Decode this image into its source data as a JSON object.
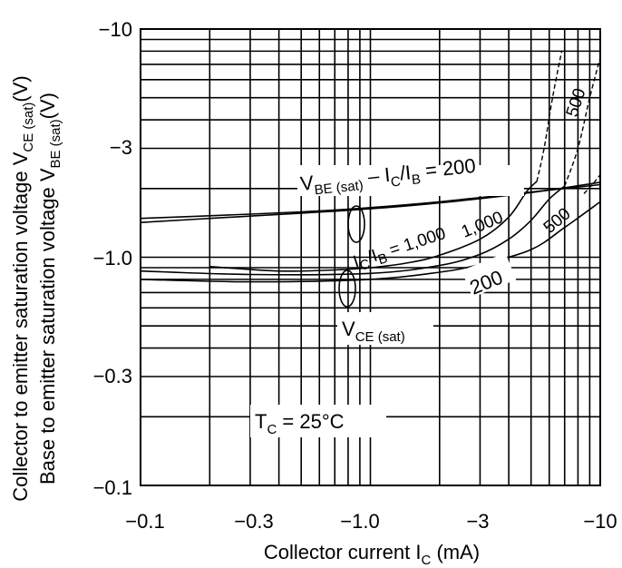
{
  "chart_data": {
    "type": "line",
    "x_scale": "log",
    "y_scale": "log",
    "xlim": [
      -0.1,
      -10
    ],
    "ylim": [
      -0.1,
      -10
    ],
    "grid": true,
    "x_ticks": [
      {
        "value": -0.1,
        "label": "−0.1"
      },
      {
        "value": -0.3,
        "label": "−0.3"
      },
      {
        "value": -1.0,
        "label": "−1.0"
      },
      {
        "value": -3,
        "label": "−3"
      },
      {
        "value": -10,
        "label": "−10"
      }
    ],
    "y_ticks": [
      {
        "value": -0.1,
        "label": "−0.1"
      },
      {
        "value": -0.3,
        "label": "−0.3"
      },
      {
        "value": -1.0,
        "label": "−1.0"
      },
      {
        "value": -3,
        "label": "−3"
      },
      {
        "value": -10,
        "label": "−10"
      }
    ],
    "xlabel": {
      "main": "Collector current  I",
      "sub": "C",
      "unit": "  (mA)"
    },
    "ylabel_line1": {
      "main": "Collector to emitter saturation voltage  V",
      "sub": "CE (sat)",
      "unit": "(V)"
    },
    "ylabel_line2": {
      "main": "Base to emitter saturation voltage  V",
      "sub": "BE (sat)",
      "unit": "(V)"
    },
    "annotations": {
      "vbe_label": {
        "main": "V",
        "sub": "BE (sat)",
        "tail": " – I",
        "sub2": "C",
        "slash": "/I",
        "sub3": "B",
        "eq": " = 200"
      },
      "ic_ib_label": {
        "main": "I",
        "sub": "C",
        "slash": "/I",
        "sub2": "B",
        "eq": " = 1,000"
      },
      "vce_label": {
        "main": "V",
        "sub": "CE (sat)"
      },
      "tc_label": {
        "main": "T",
        "sub": "C",
        "eq": " = 25°C"
      },
      "label_500_upper": "500",
      "label_1000_upper": "1,000",
      "label_500_lower": "500",
      "label_200_lower": "200"
    },
    "series": [
      {
        "group": "VBE(sat)",
        "ratio": "200",
        "style": "solid",
        "x": [
          -0.1,
          -0.2,
          -0.5,
          -1.0,
          -2.0,
          -5.0,
          -10
        ],
        "y": [
          -1.48,
          -1.52,
          -1.58,
          -1.65,
          -1.75,
          -1.93,
          -2.08
        ]
      },
      {
        "group": "VBE(sat)",
        "ratio": "1,000",
        "style": "solid",
        "x": [
          -0.1,
          -0.2,
          -0.5,
          -1.0,
          -2.0,
          -5.0,
          -10
        ],
        "y": [
          -1.42,
          -1.48,
          -1.56,
          -1.63,
          -1.73,
          -1.92,
          -2.13
        ]
      },
      {
        "group": "VCE(sat)",
        "ratio": "200",
        "style": "solid",
        "x": [
          -0.1,
          -0.3,
          -1.0,
          -2.0,
          -3.0,
          -5.0,
          -7.0,
          -10
        ],
        "y": [
          -0.8,
          -0.78,
          -0.8,
          -0.86,
          -0.93,
          -1.08,
          -1.35,
          -1.75
        ]
      },
      {
        "group": "VCE(sat)",
        "ratio": "500",
        "style": "solid",
        "x": [
          -0.1,
          -0.3,
          -1.0,
          -2.0,
          -3.0,
          -4.0,
          -5.0,
          -6.0,
          -7.0
        ],
        "y": [
          -0.87,
          -0.84,
          -0.85,
          -0.92,
          -1.03,
          -1.2,
          -1.45,
          -1.8,
          -2.05
        ]
      },
      {
        "group": "VCE(sat)",
        "ratio": "1,000",
        "style": "solid",
        "x": [
          -0.2,
          -0.4,
          -0.7,
          -1.0,
          -1.5,
          -2.0,
          -3.0,
          -4.0,
          -4.8,
          -5.3
        ],
        "y": [
          -0.91,
          -0.87,
          -0.88,
          -0.9,
          -0.95,
          -1.02,
          -1.2,
          -1.5,
          -1.95,
          -2.15
        ]
      },
      {
        "group": "VCE(sat)",
        "ratio": "1,000",
        "style": "dashed",
        "x": [
          -5.3,
          -5.7,
          -6.2,
          -6.8
        ],
        "y": [
          -2.15,
          -3.0,
          -5.0,
          -8.0
        ]
      },
      {
        "group": "VCE(sat)",
        "ratio": "500",
        "style": "dashed",
        "x": [
          -7.0,
          -8.0,
          -9.0,
          -10
        ],
        "y": [
          -2.05,
          -3.0,
          -5.0,
          -7.5
        ]
      },
      {
        "group": "VCE(sat)",
        "ratio": "200",
        "style": "dashed",
        "x": [
          -8.5,
          -9.3,
          -10
        ],
        "y": [
          -1.9,
          -2.1,
          -2.3
        ]
      }
    ]
  }
}
